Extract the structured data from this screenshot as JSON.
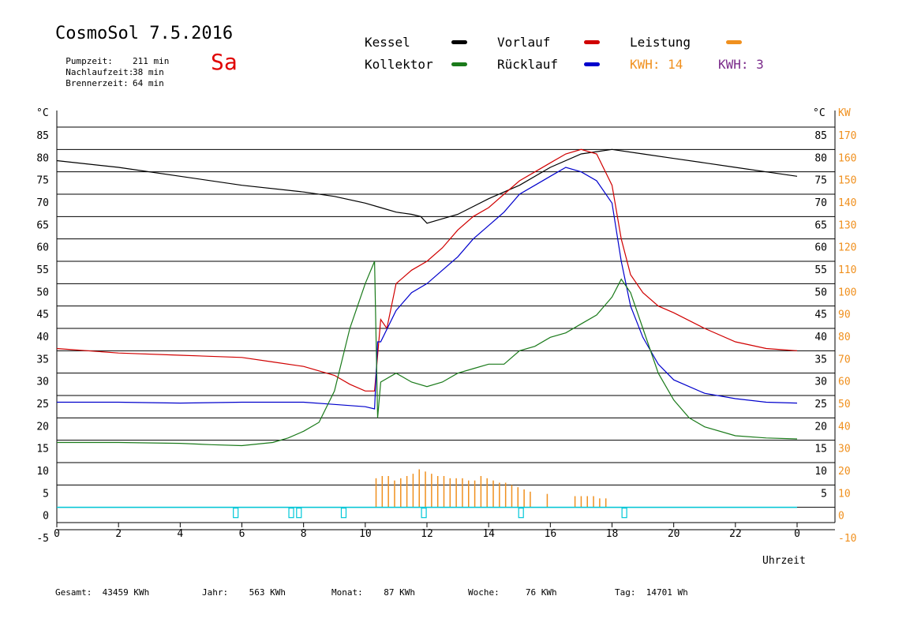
{
  "header": {
    "title": "CosmoSol 7.5.2016",
    "day": "Sa",
    "stats": [
      {
        "label": "Pumpzeit:",
        "value": "211 min"
      },
      {
        "label": "Nachlaufzeit:",
        "value": "38 min"
      },
      {
        "label": "Brennerzeit:",
        "value": "64 min"
      }
    ]
  },
  "legend": {
    "kessel": "Kessel",
    "kollektor": "Kollektor",
    "vorlauf": "Vorlauf",
    "ruecklauf": "Rücklauf",
    "leistung": "Leistung",
    "kwh1": "KWH: 14",
    "kwh2": "KWH: 3"
  },
  "colors": {
    "kessel": "#000000",
    "kollektor": "#1a7a1a",
    "vorlauf": "#d00000",
    "ruecklauf": "#0000cc",
    "leistung": "#f0901e",
    "kwh2": "#7a2a8a",
    "pump": "#00c8d8"
  },
  "footer": {
    "gesamt": "Gesamt:  43459 KWh",
    "jahr": "Jahr:    563 KWh",
    "monat": "Monat:    87 KWh",
    "woche": "Woche:     76 KWh",
    "tag": "Tag:  14701 Wh"
  },
  "chart_data": {
    "type": "line",
    "xlabel": "Uhrzeit",
    "ylabel_left": "°C",
    "ylabel_right": "°C",
    "ylabel_right2": "KW",
    "xlim": [
      0,
      24
    ],
    "ylim": [
      -5,
      85
    ],
    "x_ticks": [
      "0",
      "2",
      "4",
      "6",
      "8",
      "10",
      "12",
      "14",
      "16",
      "18",
      "20",
      "22",
      "0"
    ],
    "y_ticks_left": [
      "-5",
      "0",
      "5",
      "10",
      "15",
      "20",
      "25",
      "30",
      "35",
      "40",
      "45",
      "50",
      "55",
      "60",
      "65",
      "70",
      "75",
      "80",
      "85"
    ],
    "y_ticks_right": [
      "5",
      "10",
      "15",
      "20",
      "25",
      "30",
      "35",
      "40",
      "45",
      "50",
      "55",
      "60",
      "65",
      "70",
      "75",
      "80",
      "85"
    ],
    "kw_ticks": [
      "-10",
      "0",
      "10",
      "20",
      "30",
      "40",
      "50",
      "60",
      "70",
      "80",
      "90",
      "100",
      "110",
      "120",
      "130",
      "140",
      "150",
      "160",
      "170"
    ],
    "grid": true,
    "series": [
      {
        "name": "Kessel",
        "key": "kessel",
        "x": [
          0,
          2,
          4,
          6,
          8,
          9,
          10,
          10.5,
          11,
          11.5,
          11.8,
          12,
          13,
          14,
          15,
          16,
          17,
          18,
          19,
          20,
          21,
          22,
          23,
          24
        ],
        "y": [
          77.5,
          76,
          74,
          72,
          70.5,
          69.5,
          68,
          67,
          66,
          65.5,
          65,
          63.5,
          65.5,
          69,
          72,
          76,
          79,
          80,
          79,
          78,
          77,
          76,
          75,
          74
        ]
      },
      {
        "name": "Vorlauf",
        "key": "vorlauf",
        "x": [
          0,
          2,
          4,
          6,
          7,
          8,
          9,
          9.5,
          10,
          10.3,
          10.5,
          10.7,
          11,
          11.5,
          12,
          12.5,
          13,
          13.5,
          14,
          14.5,
          15,
          15.5,
          16,
          16.5,
          17,
          17.5,
          18,
          18.3,
          18.6,
          19,
          19.5,
          20,
          21,
          22,
          23,
          24
        ],
        "y": [
          35.5,
          34.5,
          34,
          33.5,
          32.5,
          31.5,
          29.5,
          27.5,
          26,
          26,
          42,
          40,
          50,
          53,
          55,
          58,
          62,
          65,
          67,
          70,
          73,
          75,
          77,
          79,
          80,
          79,
          72,
          60,
          52,
          48,
          45,
          43.5,
          40,
          37,
          35.5,
          35
        ]
      },
      {
        "name": "Rücklauf",
        "key": "ruecklauf",
        "x": [
          0,
          2,
          4,
          6,
          8,
          9,
          10,
          10.3,
          10.4,
          10.5,
          11,
          11.5,
          12,
          12.5,
          13,
          13.5,
          14,
          14.5,
          15,
          15.5,
          16,
          16.5,
          17,
          17.5,
          18,
          18.3,
          18.6,
          19,
          19.5,
          20,
          21,
          22,
          23,
          24
        ],
        "y": [
          23.5,
          23.5,
          23.3,
          23.5,
          23.5,
          23,
          22.5,
          22,
          37,
          37,
          44,
          48,
          50,
          53,
          56,
          60,
          63,
          66,
          70,
          72,
          74,
          76,
          75,
          73,
          68,
          55,
          45,
          38,
          32,
          28.5,
          25.5,
          24.3,
          23.5,
          23.3
        ]
      },
      {
        "name": "Kollektor",
        "key": "kollektor",
        "x": [
          0,
          2,
          4,
          5,
          6,
          7,
          7.5,
          8,
          8.5,
          9,
          9.5,
          10,
          10.3,
          10.4,
          10.5,
          11,
          11.5,
          12,
          12.5,
          13,
          13.5,
          14,
          14.5,
          15,
          15.5,
          16,
          16.5,
          17,
          17.5,
          18,
          18.3,
          18.6,
          19,
          19.5,
          20,
          20.5,
          21,
          22,
          23,
          24
        ],
        "y": [
          14.5,
          14.5,
          14.3,
          14,
          13.8,
          14.5,
          15.5,
          17,
          19,
          26,
          40,
          50,
          55,
          20,
          28,
          30,
          28,
          27,
          28,
          30,
          31,
          32,
          32,
          35,
          36,
          38,
          39,
          41,
          43,
          47,
          51,
          48,
          40,
          30,
          24,
          20,
          18,
          16,
          15.5,
          15.3
        ]
      }
    ],
    "pump_markers_x": [
      5.8,
      7.6,
      7.85,
      9.3,
      11.9,
      15.05,
      18.4
    ],
    "power_bursts_x": [
      10.35,
      10.55,
      10.75,
      10.95,
      11.15,
      11.35,
      11.55,
      11.75,
      11.95,
      12.15,
      12.35,
      12.55,
      12.75,
      12.95,
      13.15,
      13.35,
      13.55,
      13.75,
      13.95,
      14.15,
      14.35,
      14.55,
      14.75,
      14.95,
      15.15,
      15.35,
      15.9,
      16.8,
      17.0,
      17.2,
      17.4,
      17.6,
      17.8
    ],
    "power_bursts_kw": [
      13,
      14,
      14,
      12,
      13,
      14,
      15,
      17,
      16,
      15,
      14,
      14,
      13,
      13,
      13,
      12,
      12,
      14,
      13,
      12,
      11,
      11,
      10,
      9,
      8,
      7,
      6,
      5,
      5,
      5,
      5,
      4,
      4
    ]
  }
}
